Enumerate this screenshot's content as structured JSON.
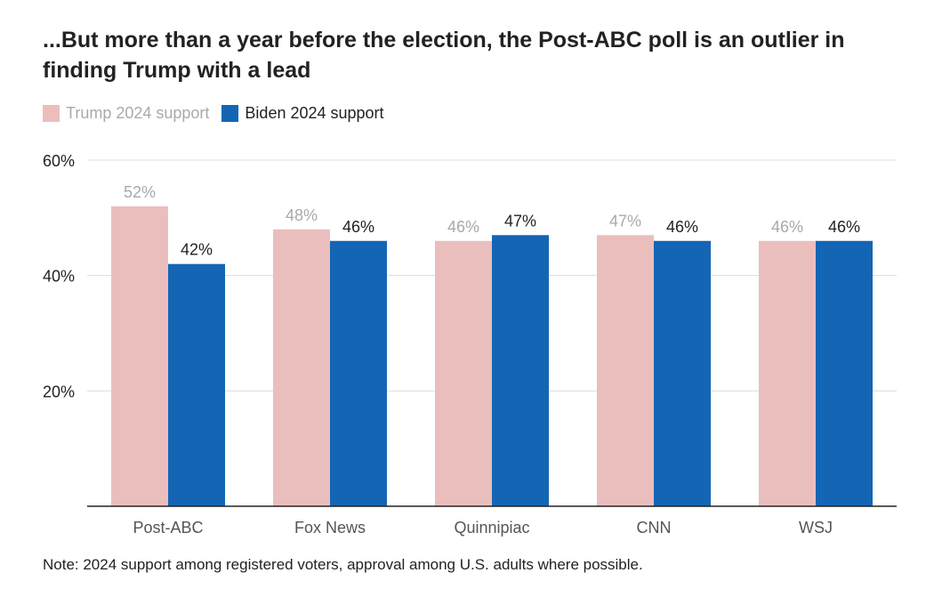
{
  "title": "...But more than a year before the election, the Post-ABC poll is an outlier in finding Trump with a lead",
  "legend": {
    "trump_label": "Trump 2024 support",
    "biden_label": "Biden 2024 support"
  },
  "colors": {
    "trump": "#ebbebe",
    "biden": "#1465b4",
    "trump_label": "#a9a9a9",
    "biden_label": "#222222",
    "grid": "#dddddd",
    "axis": "#222222"
  },
  "chart_data": {
    "type": "bar",
    "categories": [
      "Post-ABC",
      "Fox News",
      "Quinnipiac",
      "CNN",
      "WSJ"
    ],
    "series": [
      {
        "name": "Trump 2024 support",
        "values": [
          52,
          48,
          46,
          47,
          46
        ],
        "labels": [
          "52%",
          "48%",
          "46%",
          "47%",
          "46%"
        ]
      },
      {
        "name": "Biden 2024 support",
        "values": [
          42,
          46,
          47,
          46,
          46
        ],
        "labels": [
          "42%",
          "46%",
          "47%",
          "46%",
          "46%"
        ]
      }
    ],
    "ylim": [
      0,
      60
    ],
    "yticks": [
      20,
      40,
      60
    ],
    "ytick_labels": [
      "20%",
      "40%",
      "60%"
    ],
    "grid": true,
    "legend_position": "top-left"
  },
  "note": "Note: 2024 support among registered voters, approval among U.S. adults where possible.",
  "source": ""
}
